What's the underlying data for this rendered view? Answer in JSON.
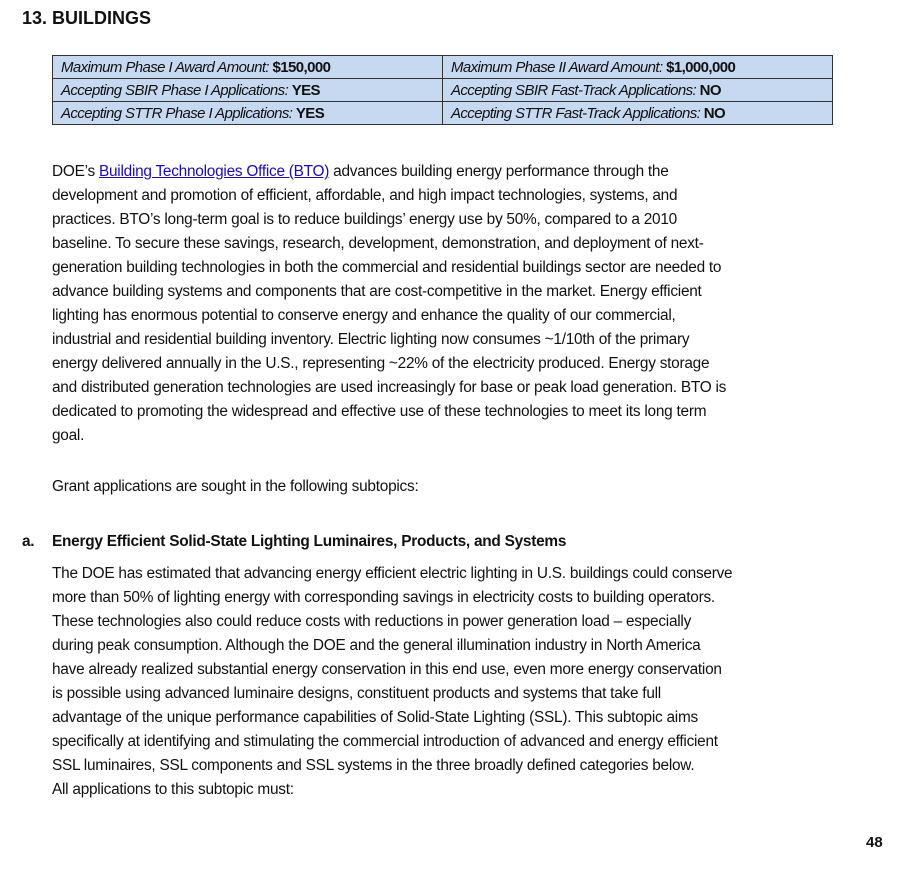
{
  "section_title": "13. BUILDINGS",
  "info_table": [
    [
      {
        "label": "Maximum Phase I Award Amount:",
        "value": "$150,000"
      },
      {
        "label": "Maximum Phase II Award Amount:",
        "value": "$1,000,000"
      }
    ],
    [
      {
        "label": "Accepting SBIR Phase I Applications:",
        "value": "YES"
      },
      {
        "label": "Accepting SBIR Fast-Track Applications:",
        "value": "NO"
      }
    ],
    [
      {
        "label": "Accepting STTR Phase I Applications:",
        "value": "YES"
      },
      {
        "label": "Accepting STTR Fast-Track Applications:",
        "value": "NO"
      }
    ]
  ],
  "intro": {
    "first_prefix": "DOE’s ",
    "link": "Building Technologies Office (BTO)",
    "first_suffix": " advances building energy performance through the",
    "lines": [
      "development and promotion of efficient, affordable, and high impact technologies, systems, and",
      "practices. BTO’s long-term goal is to reduce buildings’ energy use by 50%, compared to a 2010",
      "baseline. To secure these savings, research, development, demonstration, and deployment of next-",
      "generation building technologies in both the commercial and residential buildings sector are needed to",
      "advance building systems and components that are cost-competitive in the market. Energy efficient",
      "lighting has enormous potential to conserve energy and enhance the quality of our commercial,",
      "industrial and residential building inventory. Electric lighting now consumes ~1/10th of the primary",
      "energy delivered annually in the U.S., representing ~22% of the electricity produced. Energy storage",
      "and distributed generation technologies are used increasingly for base or peak load generation. BTO is",
      "dedicated to promoting the widespread and effective use of these technologies to meet its long term",
      "goal."
    ]
  },
  "grant_text": "Grant applications are sought in the following subtopics:",
  "subtopic": {
    "label": "a.",
    "title": "Energy Efficient Solid-State Lighting Luminaires, Products, and Systems",
    "lines": [
      "The DOE has estimated that advancing energy efficient electric lighting in U.S. buildings could conserve",
      "more than 50% of lighting energy with corresponding savings in electricity costs to building operators.",
      "These technologies also could reduce costs with reductions in power generation load – especially",
      "during peak consumption. Although the DOE and the general illumination industry in North America",
      "have already realized substantial energy conservation in this end use, even more energy conservation",
      "is possible using advanced luminaire designs, constituent products and systems that take full",
      "advantage of the unique performance capabilities of Solid-State Lighting (SSL). This subtopic aims",
      "specifically at identifying and stimulating the commercial introduction of advanced and energy efficient",
      "SSL luminaires, SSL components and SSL systems in the three broadly defined categories below.",
      "All applications to this subtopic must:"
    ]
  },
  "page_number": "48"
}
